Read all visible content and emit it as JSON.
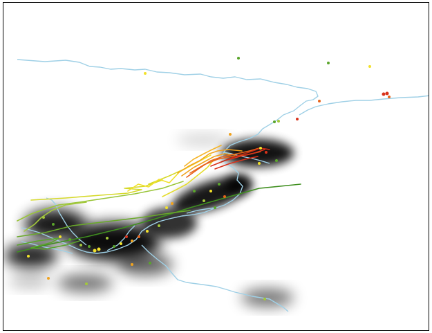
{
  "map": {
    "colors": {
      "background": "#ffffff",
      "frame": "#000000",
      "rivers": "#9fd0e6",
      "density": "#000000",
      "tracks": [
        "#3f8f1f",
        "#6aa92a",
        "#9ac53a",
        "#d6d92a",
        "#f2e12b",
        "#f0a21e",
        "#e8641a",
        "#d8321b"
      ],
      "points": [
        "#5aa52b",
        "#a3c83b",
        "#f2e12b",
        "#f0a21e",
        "#e8641a",
        "#d8321b"
      ]
    },
    "layers": [
      "rivers",
      "density-hotspots",
      "animal-tracks",
      "observation-points"
    ]
  }
}
